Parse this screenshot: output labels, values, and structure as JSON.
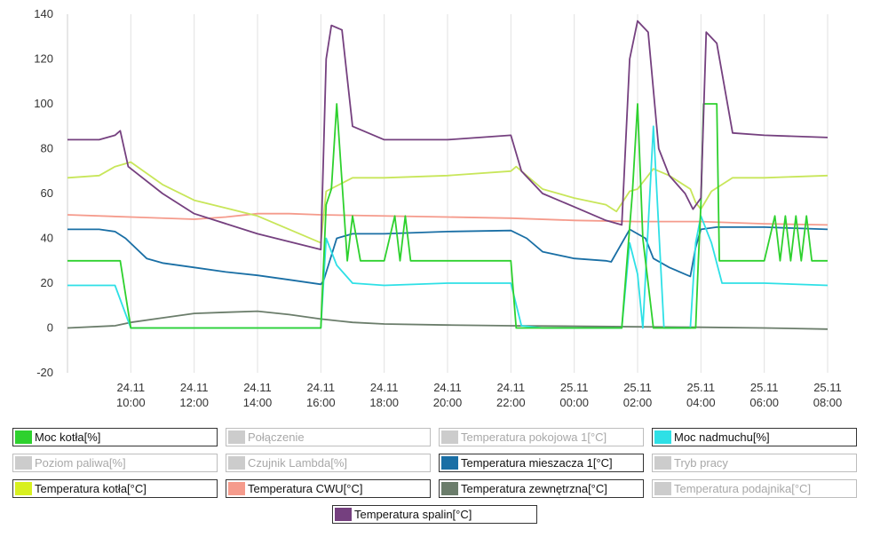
{
  "chart_data": {
    "type": "line",
    "title": "",
    "xlabel": "",
    "ylabel": "",
    "ylim": [
      -20,
      140
    ],
    "yticks": [
      -20,
      0,
      20,
      40,
      60,
      80,
      100,
      120,
      140
    ],
    "xlim": [
      "24.11 08:00",
      "25.11 08:00"
    ],
    "xticks": [
      {
        "x": "24.11 10:00",
        "label1": "24.11",
        "label2": "10:00"
      },
      {
        "x": "24.11 12:00",
        "label1": "24.11",
        "label2": "12:00"
      },
      {
        "x": "24.11 14:00",
        "label1": "24.11",
        "label2": "14:00"
      },
      {
        "x": "24.11 16:00",
        "label1": "24.11",
        "label2": "16:00"
      },
      {
        "x": "24.11 18:00",
        "label1": "24.11",
        "label2": "18:00"
      },
      {
        "x": "24.11 20:00",
        "label1": "24.11",
        "label2": "20:00"
      },
      {
        "x": "24.11 22:00",
        "label1": "24.11",
        "label2": "22:00"
      },
      {
        "x": "25.11 00:00",
        "label1": "25.11",
        "label2": "00:00"
      },
      {
        "x": "25.11 02:00",
        "label1": "25.11",
        "label2": "02:00"
      },
      {
        "x": "25.11 04:00",
        "label1": "25.11",
        "label2": "04:00"
      },
      {
        "x": "25.11 06:00",
        "label1": "25.11",
        "label2": "06:00"
      },
      {
        "x": "25.11 08:00",
        "label1": "25.11",
        "label2": "08:00"
      }
    ],
    "grid": "vertical",
    "legend_position": "bottom",
    "series": [
      {
        "name": "Temperatura zewnętrzna[°C]",
        "color": "#6b7d6b",
        "active": true,
        "points": [
          [
            "24.11 08:00",
            0
          ],
          [
            "24.11 09:30",
            1
          ],
          [
            "24.11 10:00",
            2.5
          ],
          [
            "24.11 11:00",
            4.5
          ],
          [
            "24.11 12:00",
            6.5
          ],
          [
            "24.11 13:00",
            7
          ],
          [
            "24.11 14:00",
            7.5
          ],
          [
            "24.11 15:00",
            6
          ],
          [
            "24.11 16:00",
            4
          ],
          [
            "24.11 17:00",
            2.5
          ],
          [
            "24.11 18:00",
            1.8
          ],
          [
            "24.11 20:00",
            1.3
          ],
          [
            "24.11 22:00",
            1
          ],
          [
            "25.11 00:00",
            0.8
          ],
          [
            "25.11 02:00",
            0.5
          ],
          [
            "25.11 04:00",
            0.3
          ],
          [
            "25.11 06:00",
            0
          ],
          [
            "25.11 08:00",
            -0.5
          ]
        ]
      },
      {
        "name": "Temperatura CWU[°C]",
        "color": "#f59b8c",
        "active": true,
        "points": [
          [
            "24.11 08:00",
            50.5
          ],
          [
            "24.11 10:00",
            49.5
          ],
          [
            "24.11 12:00",
            48.5
          ],
          [
            "24.11 13:00",
            49.5
          ],
          [
            "24.11 14:00",
            51
          ],
          [
            "24.11 15:00",
            51
          ],
          [
            "24.11 16:00",
            50.5
          ],
          [
            "24.11 20:00",
            49.5
          ],
          [
            "24.11 22:00",
            49
          ],
          [
            "25.11 00:00",
            48
          ],
          [
            "25.11 02:00",
            47.5
          ],
          [
            "25.11 04:00",
            47.5
          ],
          [
            "25.11 06:00",
            46.5
          ],
          [
            "25.11 08:00",
            46
          ]
        ]
      },
      {
        "name": "Temperatura mieszacza 1[°C]",
        "color": "#1a6fa5",
        "active": true,
        "points": [
          [
            "24.11 08:00",
            44
          ],
          [
            "24.11 09:00",
            44
          ],
          [
            "24.11 09:30",
            43
          ],
          [
            "24.11 09:50",
            40
          ],
          [
            "24.11 10:30",
            31
          ],
          [
            "24.11 11:00",
            29
          ],
          [
            "24.11 12:00",
            27
          ],
          [
            "24.11 13:00",
            25
          ],
          [
            "24.11 14:00",
            23.5
          ],
          [
            "24.11 15:00",
            21.5
          ],
          [
            "24.11 16:00",
            19.5
          ],
          [
            "24.11 16:05",
            21
          ],
          [
            "24.11 16:30",
            40
          ],
          [
            "24.11 17:00",
            42
          ],
          [
            "24.11 18:00",
            42
          ],
          [
            "24.11 20:00",
            43
          ],
          [
            "24.11 22:00",
            43.5
          ],
          [
            "24.11 22:30",
            40
          ],
          [
            "24.11 23:00",
            34
          ],
          [
            "25.11 00:00",
            31
          ],
          [
            "25.11 01:00",
            30
          ],
          [
            "25.11 01:10",
            29.5
          ],
          [
            "25.11 01:45",
            44
          ],
          [
            "25.11 02:15",
            40
          ],
          [
            "25.11 02:30",
            31
          ],
          [
            "25.11 03:00",
            27
          ],
          [
            "25.11 03:30",
            24
          ],
          [
            "25.11 03:40",
            23
          ],
          [
            "25.11 03:50",
            36
          ],
          [
            "25.11 04:00",
            44
          ],
          [
            "25.11 04:30",
            45
          ],
          [
            "25.11 06:00",
            45
          ],
          [
            "25.11 08:00",
            44
          ]
        ]
      },
      {
        "name": "Temperatura kotła[°C]",
        "color": "#c8e65a",
        "active": true,
        "points": [
          [
            "24.11 08:00",
            67
          ],
          [
            "24.11 09:00",
            68
          ],
          [
            "24.11 09:30",
            72
          ],
          [
            "24.11 10:00",
            74
          ],
          [
            "24.11 11:00",
            64
          ],
          [
            "24.11 12:00",
            57
          ],
          [
            "24.11 14:00",
            50
          ],
          [
            "24.11 16:00",
            38
          ],
          [
            "24.11 16:10",
            61
          ],
          [
            "24.11 17:00",
            67
          ],
          [
            "24.11 18:00",
            67
          ],
          [
            "24.11 20:00",
            68
          ],
          [
            "24.11 22:00",
            70
          ],
          [
            "24.11 22:10",
            72
          ],
          [
            "24.11 23:00",
            62
          ],
          [
            "25.11 00:00",
            58
          ],
          [
            "25.11 01:00",
            55
          ],
          [
            "25.11 01:20",
            52
          ],
          [
            "25.11 01:45",
            61
          ],
          [
            "25.11 02:00",
            62
          ],
          [
            "25.11 02:30",
            71
          ],
          [
            "25.11 03:00",
            68
          ],
          [
            "25.11 03:40",
            62
          ],
          [
            "25.11 03:50",
            56
          ],
          [
            "25.11 04:00",
            53
          ],
          [
            "25.11 04:20",
            61
          ],
          [
            "25.11 05:00",
            67
          ],
          [
            "25.11 06:00",
            67
          ],
          [
            "25.11 08:00",
            68
          ]
        ]
      },
      {
        "name": "Moc nadmuchu[%]",
        "color": "#2ee0e6",
        "active": true,
        "points": [
          [
            "24.11 08:00",
            19
          ],
          [
            "24.11 09:20",
            19
          ],
          [
            "24.11 09:30",
            19
          ],
          [
            "24.11 10:00",
            0
          ],
          [
            "24.11 16:00",
            0
          ],
          [
            "24.11 16:10",
            40
          ],
          [
            "24.11 16:30",
            28
          ],
          [
            "24.11 17:00",
            20
          ],
          [
            "24.11 18:00",
            19
          ],
          [
            "24.11 20:00",
            20
          ],
          [
            "24.11 22:00",
            20
          ],
          [
            "24.11 22:20",
            1
          ],
          [
            "24.11 23:00",
            0
          ],
          [
            "25.11 01:30",
            0
          ],
          [
            "25.11 01:45",
            38
          ],
          [
            "25.11 02:00",
            24
          ],
          [
            "25.11 02:10",
            0
          ],
          [
            "25.11 02:30",
            90
          ],
          [
            "25.11 02:50",
            0
          ],
          [
            "25.11 03:40",
            0
          ],
          [
            "25.11 03:50",
            38
          ],
          [
            "25.11 04:00",
            50
          ],
          [
            "25.11 04:20",
            38
          ],
          [
            "25.11 04:40",
            20
          ],
          [
            "25.11 06:00",
            20
          ],
          [
            "25.11 08:00",
            19
          ]
        ]
      },
      {
        "name": "Moc kotła[%]",
        "color": "#2ed12e",
        "active": true,
        "points": [
          [
            "24.11 08:00",
            30
          ],
          [
            "24.11 09:10",
            30
          ],
          [
            "24.11 09:40",
            30
          ],
          [
            "24.11 10:00",
            0
          ],
          [
            "24.11 16:00",
            0
          ],
          [
            "24.11 16:10",
            55
          ],
          [
            "24.11 16:20",
            62
          ],
          [
            "24.11 16:30",
            100
          ],
          [
            "24.11 16:50",
            30
          ],
          [
            "24.11 17:00",
            50
          ],
          [
            "24.11 17:15",
            30
          ],
          [
            "24.11 18:00",
            30
          ],
          [
            "24.11 18:20",
            50
          ],
          [
            "24.11 18:30",
            30
          ],
          [
            "24.11 18:40",
            50
          ],
          [
            "24.11 18:50",
            30
          ],
          [
            "24.11 22:00",
            30
          ],
          [
            "24.11 22:10",
            0
          ],
          [
            "25.11 01:30",
            0
          ],
          [
            "25.11 01:40",
            30
          ],
          [
            "25.11 01:50",
            60
          ],
          [
            "25.11 02:00",
            100
          ],
          [
            "25.11 02:10",
            40
          ],
          [
            "25.11 02:30",
            0
          ],
          [
            "25.11 03:50",
            0
          ],
          [
            "25.11 03:55",
            30
          ],
          [
            "25.11 04:00",
            55
          ],
          [
            "25.11 04:05",
            100
          ],
          [
            "25.11 04:30",
            100
          ],
          [
            "25.11 04:35",
            30
          ],
          [
            "25.11 05:00",
            30
          ],
          [
            "25.11 06:00",
            30
          ],
          [
            "25.11 06:20",
            50
          ],
          [
            "25.11 06:30",
            30
          ],
          [
            "25.11 06:40",
            50
          ],
          [
            "25.11 06:50",
            30
          ],
          [
            "25.11 07:00",
            50
          ],
          [
            "25.11 07:10",
            30
          ],
          [
            "25.11 07:20",
            50
          ],
          [
            "25.11 07:30",
            30
          ],
          [
            "25.11 08:00",
            30
          ]
        ]
      },
      {
        "name": "Temperatura spalin[°C]",
        "color": "#75407f",
        "active": true,
        "points": [
          [
            "24.11 08:00",
            84
          ],
          [
            "24.11 09:00",
            84
          ],
          [
            "24.11 09:30",
            86
          ],
          [
            "24.11 09:40",
            88
          ],
          [
            "24.11 09:55",
            72
          ],
          [
            "24.11 11:00",
            60
          ],
          [
            "24.11 12:00",
            51
          ],
          [
            "24.11 14:00",
            42
          ],
          [
            "24.11 16:00",
            35
          ],
          [
            "24.11 16:10",
            120
          ],
          [
            "24.11 16:20",
            135
          ],
          [
            "24.11 16:40",
            133
          ],
          [
            "24.11 17:00",
            90
          ],
          [
            "24.11 18:00",
            84
          ],
          [
            "24.11 20:00",
            84
          ],
          [
            "24.11 22:00",
            86
          ],
          [
            "24.11 22:20",
            70
          ],
          [
            "24.11 23:00",
            60
          ],
          [
            "25.11 00:00",
            54
          ],
          [
            "25.11 01:00",
            48
          ],
          [
            "25.11 01:30",
            46
          ],
          [
            "25.11 01:45",
            120
          ],
          [
            "25.11 02:00",
            137
          ],
          [
            "25.11 02:20",
            132
          ],
          [
            "25.11 02:40",
            80
          ],
          [
            "25.11 03:00",
            68
          ],
          [
            "25.11 03:30",
            60
          ],
          [
            "25.11 03:45",
            53
          ],
          [
            "25.11 04:00",
            58
          ],
          [
            "25.11 04:10",
            132
          ],
          [
            "25.11 04:30",
            127
          ],
          [
            "25.11 05:00",
            87
          ],
          [
            "25.11 06:00",
            86
          ],
          [
            "25.11 08:00",
            85
          ]
        ]
      }
    ],
    "legend": [
      {
        "name": "Moc kotła[%]",
        "color": "#2ed12e",
        "active": true
      },
      {
        "name": "Połączenie",
        "color": "#cccccc",
        "active": false
      },
      {
        "name": "Temperatura pokojowa 1[°C]",
        "color": "#cccccc",
        "active": false
      },
      {
        "name": "Moc nadmuchu[%]",
        "color": "#2ee0e6",
        "active": true
      },
      {
        "name": "Poziom paliwa[%]",
        "color": "#cccccc",
        "active": false
      },
      {
        "name": "Czujnik Lambda[%]",
        "color": "#cccccc",
        "active": false
      },
      {
        "name": "Temperatura mieszacza 1[°C]",
        "color": "#1a6fa5",
        "active": true
      },
      {
        "name": "Tryb pracy",
        "color": "#cccccc",
        "active": false
      },
      {
        "name": "Temperatura kotła[°C]",
        "color": "#d8f020",
        "active": true
      },
      {
        "name": "Temperatura CWU[°C]",
        "color": "#f59b8c",
        "active": true
      },
      {
        "name": "Temperatura zewnętrzna[°C]",
        "color": "#6b7d6b",
        "active": true
      },
      {
        "name": "Temperatura podajnika[°C]",
        "color": "#cccccc",
        "active": false
      },
      {
        "name": "Temperatura spalin[°C]",
        "color": "#75407f",
        "active": true
      }
    ]
  }
}
